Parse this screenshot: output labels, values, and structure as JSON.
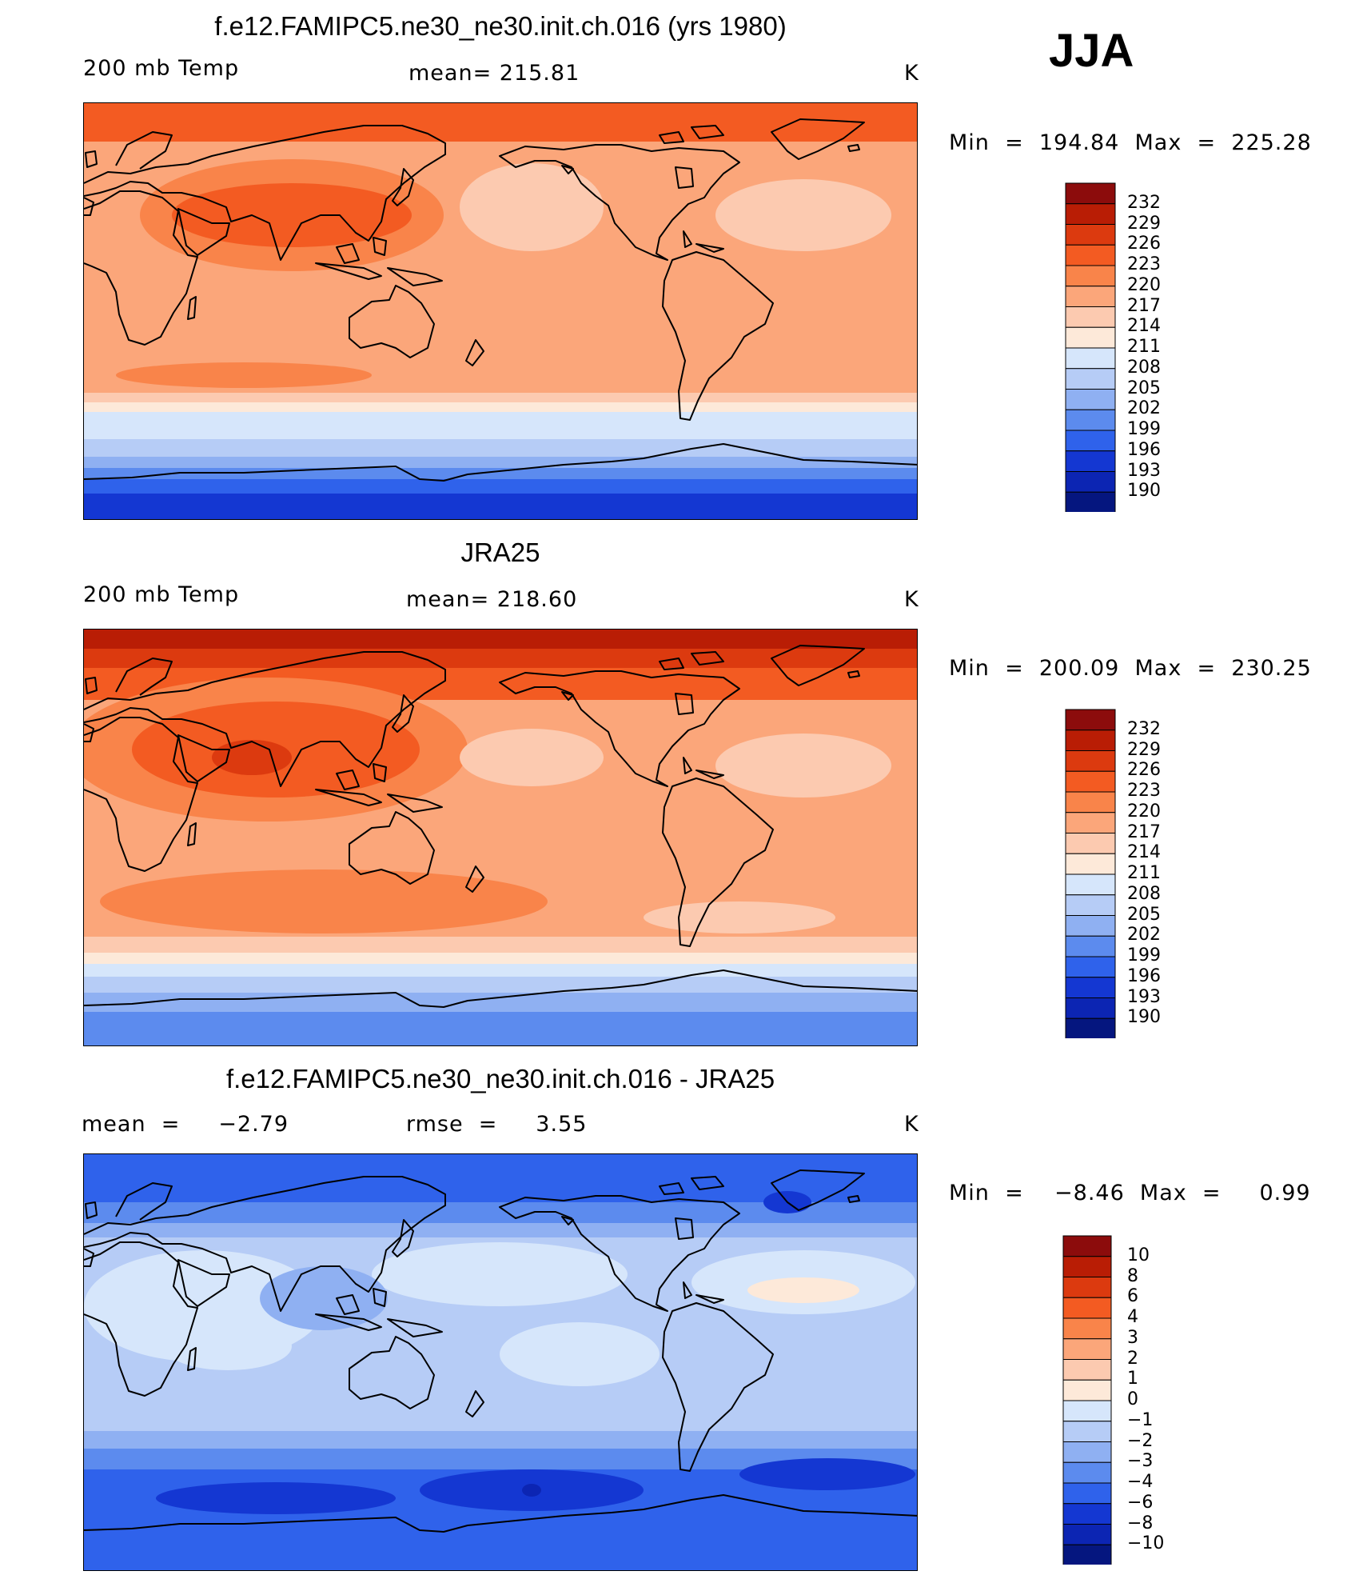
{
  "season": "JJA",
  "panels": [
    {
      "title": "f.e12.FAMIPC5.ne30_ne30.init.ch.016 (yrs 1980)",
      "left_label": "200 mb Temp",
      "center_label": "mean= 215.81",
      "units": "K",
      "minmax": "Min  =  194.84  Max  =  225.28"
    },
    {
      "title": "JRA25",
      "left_label": "200 mb Temp",
      "center_label": "mean= 218.60",
      "units": "K",
      "minmax": "Min  =  200.09  Max  =  230.25"
    },
    {
      "title": "f.e12.FAMIPC5.ne30_ne30.init.ch.016 - JRA25",
      "left_label": "mean  =     −2.79",
      "center_label": "rmse  =     3.55",
      "units": "K",
      "minmax": "Min  =    −8.46  Max  =     0.99"
    }
  ],
  "legend_temp": {
    "labels": [
      "232",
      "229",
      "226",
      "223",
      "220",
      "217",
      "214",
      "211",
      "208",
      "205",
      "202",
      "199",
      "196",
      "193",
      "190"
    ],
    "colors": [
      "#8c0c0c",
      "#b91d05",
      "#dc3a0f",
      "#f35b22",
      "#f9844a",
      "#fba67a",
      "#fccab0",
      "#fde9d9",
      "#d6e6fb",
      "#b6ccf6",
      "#8fb0f2",
      "#5c8bee",
      "#2f62eb",
      "#1437d2",
      "#0c25b3",
      "#05167f"
    ]
  },
  "legend_diff": {
    "labels": [
      "10",
      "8",
      "6",
      "4",
      "3",
      "2",
      "1",
      "0",
      "−1",
      "−2",
      "−3",
      "−4",
      "−6",
      "−8",
      "−10"
    ],
    "colors": [
      "#8c0c0c",
      "#b91d05",
      "#dc3a0f",
      "#f35b22",
      "#f9844a",
      "#fba67a",
      "#fccab0",
      "#fde9d9",
      "#d6e6fb",
      "#b6ccf6",
      "#8fb0f2",
      "#5c8bee",
      "#2f62eb",
      "#1437d2",
      "#0c25b3",
      "#05167f"
    ]
  }
}
